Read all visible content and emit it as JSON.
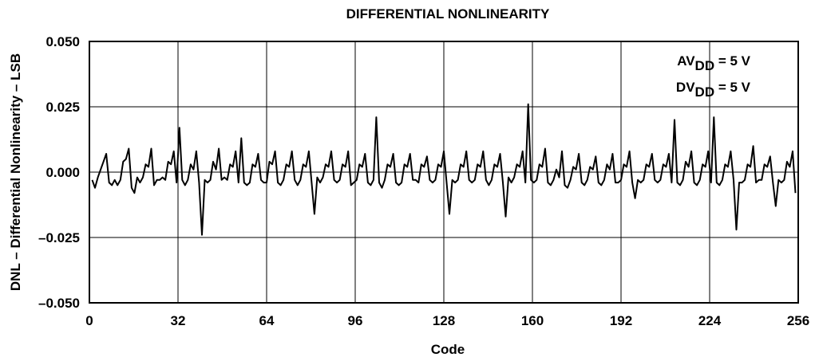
{
  "chart_data": {
    "type": "line",
    "title": "DIFFERENTIAL NONLINEARITY",
    "xlabel": "Code",
    "ylabel": "DNL – Differential Nonlinearity – LSB",
    "xlim": [
      0,
      256
    ],
    "ylim": [
      -0.05,
      0.05
    ],
    "x_ticks": [
      0,
      32,
      64,
      96,
      128,
      160,
      192,
      224,
      256
    ],
    "y_ticks": [
      0.05,
      0.025,
      0.0,
      -0.025,
      -0.05
    ],
    "x_tick_labels": [
      "0",
      "32",
      "64",
      "96",
      "128",
      "160",
      "192",
      "224",
      "256"
    ],
    "y_tick_labels": [
      "0.050",
      "0.025",
      "0.000",
      "–0.025",
      "–0.050"
    ],
    "grid": true,
    "annotations": [
      {
        "text": "AV",
        "sub": "DD",
        "suffix": " = 5 V"
      },
      {
        "text": "DV",
        "sub": "DD",
        "suffix": " = 5 V"
      }
    ],
    "series": [
      {
        "values": [
          -0.003,
          -0.006,
          -0.002,
          0.001,
          0.004,
          0.007,
          -0.004,
          -0.005,
          -0.003,
          -0.005,
          -0.003,
          0.004,
          0.005,
          0.009,
          -0.006,
          -0.008,
          -0.002,
          -0.004,
          -0.002,
          0.003,
          0.002,
          0.009,
          -0.005,
          -0.003,
          -0.003,
          -0.002,
          -0.003,
          0.004,
          0.003,
          0.008,
          -0.004,
          0.017,
          -0.003,
          -0.005,
          -0.003,
          0.003,
          0.001,
          0.008,
          -0.004,
          -0.024,
          -0.003,
          -0.004,
          -0.003,
          0.004,
          0.001,
          0.009,
          -0.003,
          -0.002,
          -0.003,
          0.003,
          0.002,
          0.008,
          -0.004,
          0.013,
          -0.004,
          -0.005,
          -0.004,
          0.003,
          0.002,
          0.007,
          -0.003,
          -0.004,
          -0.004,
          0.004,
          0.003,
          0.008,
          -0.004,
          -0.005,
          -0.003,
          0.003,
          0.002,
          0.008,
          -0.003,
          -0.005,
          -0.003,
          0.003,
          0.002,
          0.008,
          -0.004,
          -0.016,
          -0.002,
          -0.004,
          -0.002,
          0.003,
          0.002,
          0.008,
          -0.003,
          -0.004,
          -0.003,
          0.003,
          0.002,
          0.008,
          -0.005,
          -0.004,
          -0.003,
          0.003,
          0.002,
          0.007,
          -0.004,
          -0.005,
          -0.003,
          0.021,
          -0.004,
          -0.006,
          -0.003,
          0.003,
          0.002,
          0.007,
          -0.004,
          -0.005,
          -0.004,
          0.003,
          0.002,
          0.007,
          -0.003,
          -0.003,
          -0.004,
          0.003,
          0.002,
          0.006,
          -0.003,
          -0.004,
          -0.003,
          0.003,
          0.002,
          0.008,
          -0.004,
          -0.016,
          -0.003,
          -0.004,
          -0.003,
          0.003,
          0.002,
          0.008,
          -0.003,
          -0.004,
          -0.003,
          0.003,
          0.002,
          0.008,
          -0.003,
          -0.005,
          -0.003,
          0.003,
          0.002,
          0.007,
          -0.004,
          -0.017,
          -0.002,
          -0.004,
          -0.002,
          0.003,
          0.002,
          0.008,
          -0.004,
          0.026,
          -0.003,
          -0.004,
          -0.003,
          0.003,
          0.002,
          0.009,
          -0.004,
          -0.005,
          -0.003,
          0.001,
          -0.002,
          0.008,
          -0.005,
          -0.006,
          -0.003,
          0.002,
          0.001,
          0.007,
          -0.004,
          -0.005,
          -0.003,
          0.002,
          0.001,
          0.006,
          -0.004,
          -0.005,
          -0.003,
          0.003,
          0.001,
          0.007,
          -0.004,
          -0.004,
          -0.003,
          0.003,
          0.002,
          0.008,
          -0.004,
          -0.01,
          -0.003,
          -0.004,
          -0.003,
          0.003,
          0.002,
          0.007,
          -0.003,
          -0.004,
          -0.003,
          0.003,
          0.002,
          0.007,
          -0.004,
          0.02,
          -0.004,
          -0.005,
          -0.003,
          0.004,
          0.002,
          0.008,
          -0.004,
          -0.005,
          -0.003,
          0.003,
          0.002,
          0.008,
          -0.004,
          0.021,
          -0.004,
          -0.005,
          -0.003,
          0.003,
          0.002,
          0.008,
          -0.003,
          -0.022,
          -0.004,
          -0.004,
          -0.003,
          0.003,
          0.002,
          0.01,
          -0.004,
          -0.003,
          -0.003,
          0.003,
          0.002,
          0.006,
          -0.004,
          -0.013,
          -0.003,
          -0.004,
          -0.003,
          0.004,
          0.002,
          0.008,
          -0.008
        ]
      }
    ]
  }
}
